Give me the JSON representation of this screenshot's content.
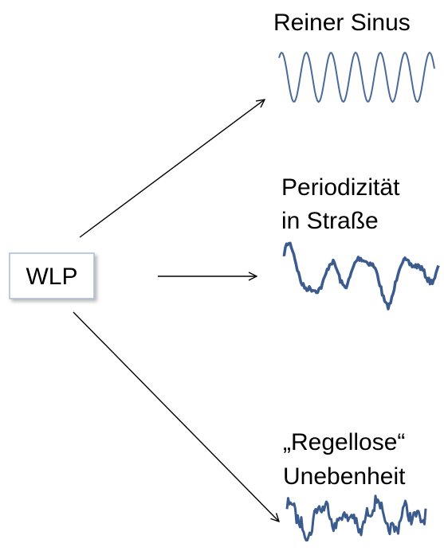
{
  "source": {
    "label": "WLP"
  },
  "outputs": [
    {
      "lines": [
        "Reiner Sinus"
      ]
    },
    {
      "lines": [
        "Periodizität",
        "in Straße"
      ]
    },
    {
      "lines": [
        "„Regellose“",
        "Unebenheit"
      ]
    }
  ]
}
